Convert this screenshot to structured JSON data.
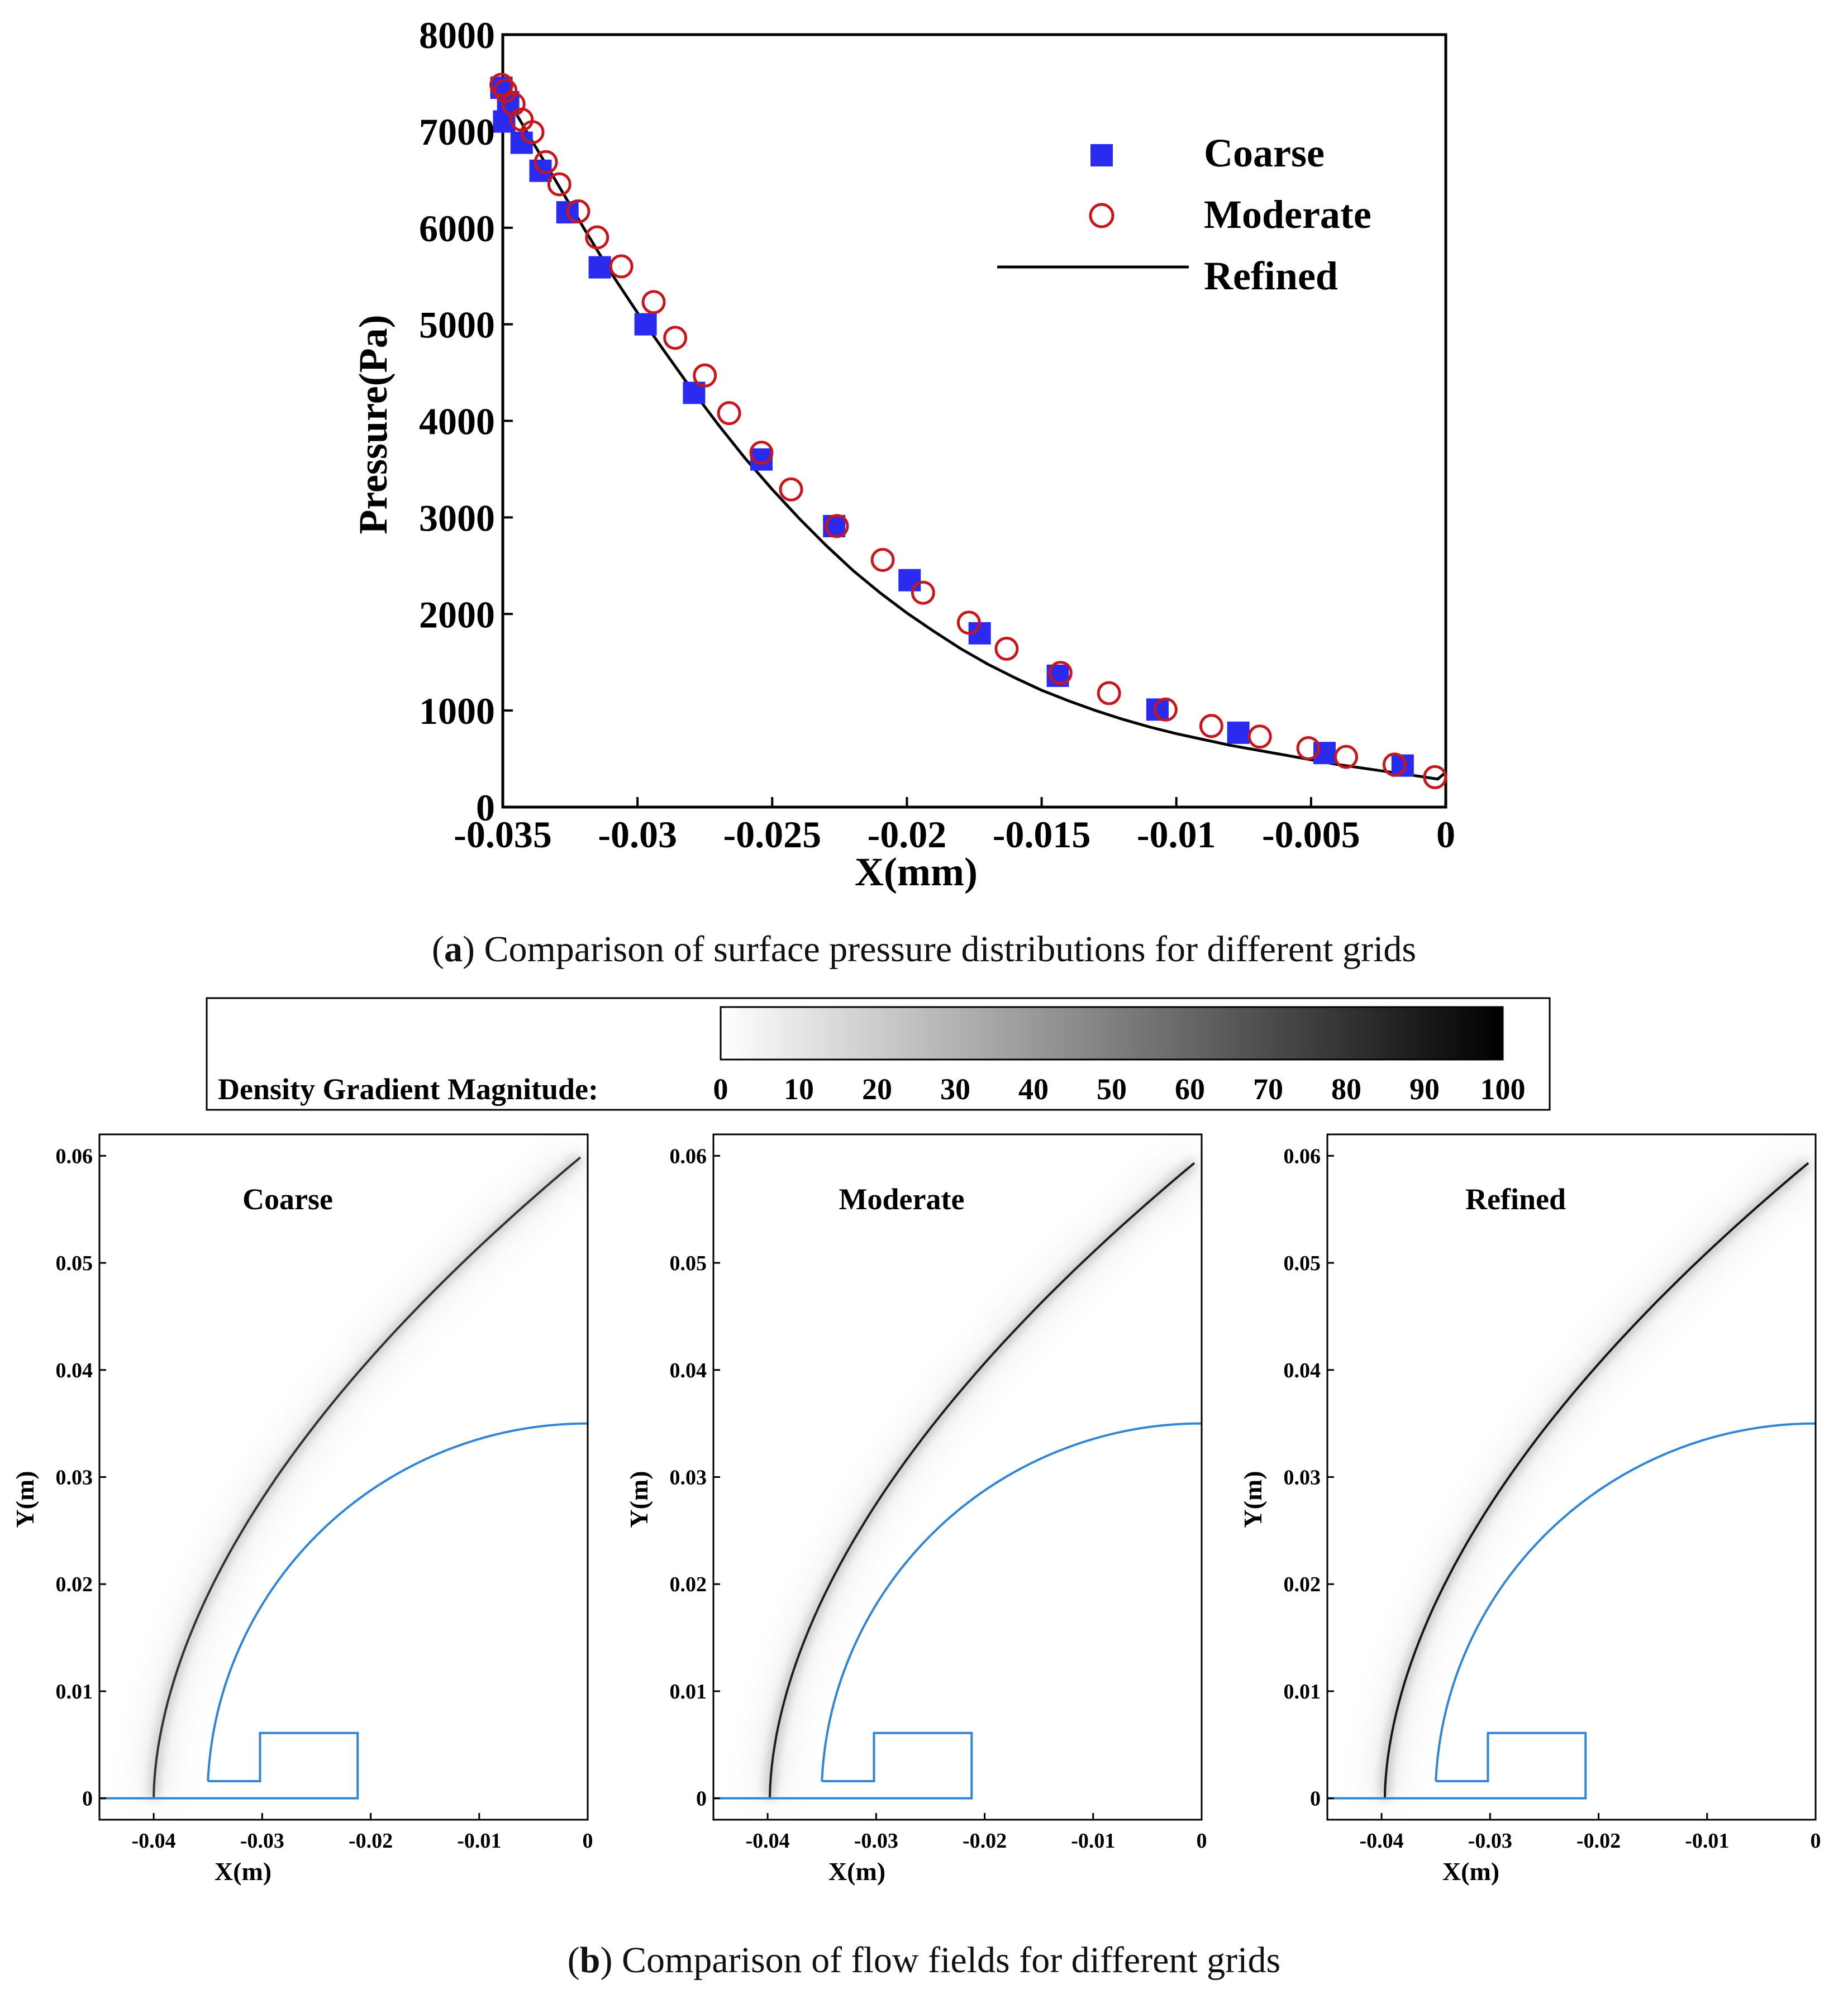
{
  "chart_data": [
    {
      "type": "scatter",
      "title": "",
      "xlabel": "X(mm)",
      "ylabel": "Pressure(Pa)",
      "xlim": [
        -0.035,
        0
      ],
      "ylim": [
        0,
        8000
      ],
      "xticks": [
        "-0.035",
        "-0.03",
        "-0.025",
        "-0.02",
        "-0.015",
        "-0.01",
        "-0.005",
        "0"
      ],
      "xtick_values": [
        -0.035,
        -0.03,
        -0.025,
        -0.02,
        -0.015,
        -0.01,
        -0.005,
        0
      ],
      "yticks": [
        "0",
        "1000",
        "2000",
        "3000",
        "4000",
        "5000",
        "6000",
        "7000",
        "8000"
      ],
      "ytick_values": [
        0,
        1000,
        2000,
        3000,
        4000,
        5000,
        6000,
        7000,
        8000
      ],
      "legend_position": "top-right",
      "series": [
        {
          "name": "Coarse",
          "marker": "filled-square",
          "color": "#2b2bf0",
          "x": [
            -0.03505,
            -0.03495,
            -0.0348,
            -0.0343,
            -0.0336,
            -0.0326,
            -0.0314,
            -0.0297,
            -0.0279,
            -0.0254,
            -0.0227,
            -0.0199,
            -0.0173,
            -0.0144,
            -0.0107,
            -0.0077,
            -0.0045,
            -0.0016
          ],
          "y": [
            7450,
            7100,
            7300,
            6880,
            6590,
            6160,
            5590,
            5000,
            4290,
            3600,
            2910,
            2350,
            1800,
            1360,
            1010,
            770,
            560,
            430
          ]
        },
        {
          "name": "Moderate",
          "marker": "open-circle",
          "color": "#c8161d",
          "x": [
            -0.03505,
            -0.0349,
            -0.0346,
            -0.0343,
            -0.0339,
            -0.0334,
            -0.0329,
            -0.0322,
            -0.0315,
            -0.0306,
            -0.0294,
            -0.0286,
            -0.0275,
            -0.0266,
            -0.0254,
            -0.0243,
            -0.0226,
            -0.0209,
            -0.0194,
            -0.0177,
            -0.0163,
            -0.0143,
            -0.0125,
            -0.0104,
            -0.0087,
            -0.0069,
            -0.0051,
            -0.0037,
            -0.0019,
            -0.0004
          ],
          "y": [
            7480,
            7420,
            7280,
            7120,
            6990,
            6680,
            6450,
            6170,
            5900,
            5600,
            5230,
            4860,
            4470,
            4080,
            3670,
            3290,
            2910,
            2560,
            2220,
            1910,
            1640,
            1390,
            1180,
            1010,
            840,
            730,
            610,
            520,
            440,
            310
          ]
        },
        {
          "name": "Refined",
          "marker": "line",
          "color": "#000000",
          "x": [
            -0.035,
            -0.0345,
            -0.034,
            -0.033,
            -0.032,
            -0.031,
            -0.03,
            -0.029,
            -0.028,
            -0.027,
            -0.026,
            -0.025,
            -0.024,
            -0.023,
            -0.022,
            -0.021,
            -0.02,
            -0.019,
            -0.018,
            -0.017,
            -0.016,
            -0.015,
            -0.014,
            -0.013,
            -0.012,
            -0.011,
            -0.01,
            -0.009,
            -0.008,
            -0.007,
            -0.006,
            -0.005,
            -0.004,
            -0.003,
            -0.002,
            -0.001,
            -0.0003,
            0.0
          ],
          "y": [
            7450,
            7180,
            6940,
            6470,
            6000,
            5540,
            5120,
            4720,
            4330,
            3960,
            3610,
            3290,
            2990,
            2710,
            2450,
            2220,
            2010,
            1820,
            1640,
            1480,
            1340,
            1210,
            1100,
            1000,
            910,
            830,
            760,
            700,
            640,
            590,
            540,
            490,
            440,
            400,
            360,
            320,
            290,
            360
          ]
        }
      ]
    },
    {
      "type": "heatmap",
      "colorbar": {
        "label": "Density Gradient Magnitude:",
        "ticks": [
          "0",
          "10",
          "20",
          "30",
          "40",
          "50",
          "60",
          "70",
          "80",
          "90",
          "100"
        ],
        "range": [
          0,
          100
        ]
      },
      "xlabel": "X(m)",
      "ylabel": "Y(m)",
      "xlim": [
        -0.045,
        0
      ],
      "ylim": [
        -0.002,
        0.062
      ],
      "xticks": [
        "-0.04",
        "-0.03",
        "-0.02",
        "-0.01",
        "0"
      ],
      "xtick_values": [
        -0.04,
        -0.03,
        -0.02,
        -0.01,
        0
      ],
      "yticks": [
        "0",
        "0.01",
        "0.02",
        "0.03",
        "0.04",
        "0.05",
        "0.06"
      ],
      "ytick_values": [
        0,
        0.01,
        0.02,
        0.03,
        0.04,
        0.05,
        0.06
      ],
      "panels": [
        {
          "title": "Coarse",
          "shock_standoff_x": -0.04,
          "shock_top_y": 0.057,
          "body_nose_x": -0.035,
          "body_radius": 0.035,
          "shock_darkness": 0.85
        },
        {
          "title": "Moderate",
          "shock_standoff_x": -0.0398,
          "shock_top_y": 0.0565,
          "body_nose_x": -0.035,
          "body_radius": 0.035,
          "shock_darkness": 0.95
        },
        {
          "title": "Refined",
          "shock_standoff_x": -0.0397,
          "shock_top_y": 0.0565,
          "body_nose_x": -0.035,
          "body_radius": 0.035,
          "shock_darkness": 1.0
        }
      ],
      "body_color": "#2f86d6"
    }
  ],
  "captions": {
    "a_label": "a",
    "a_text": "Comparison of surface pressure distributions for different grids",
    "b_label": "b",
    "b_text": "Comparison of flow fields for different grids"
  }
}
